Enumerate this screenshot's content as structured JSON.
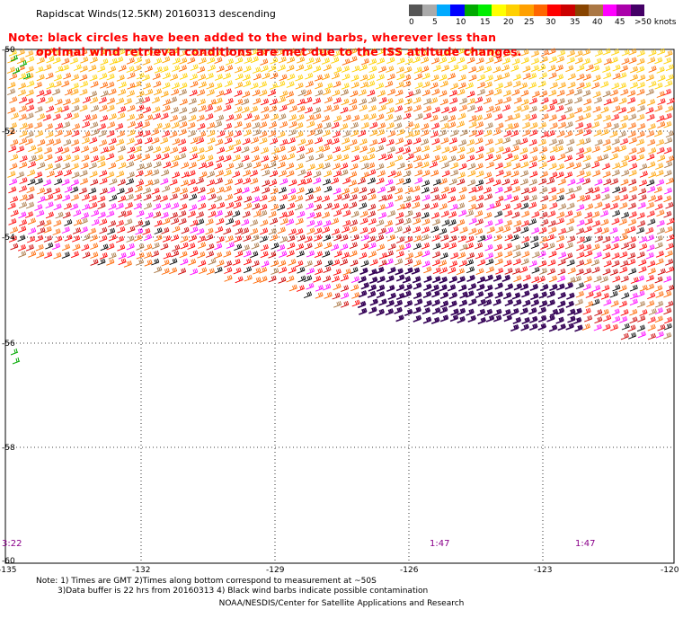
{
  "title": "Rapidscat Winds(12.5KM) 20160313 descending",
  "note_line1": "Note: black circles have been added to the wind barbs, wherever less than",
  "note_line2": "optimal wind retrieval conditions are met due to the ISS attitude changes.",
  "legend": {
    "labels": [
      "0",
      "5",
      "10",
      "15",
      "20",
      "25",
      "30",
      "35",
      "40",
      "45",
      ">50 knots"
    ],
    "colors": [
      "#555555",
      "#aaaaaa",
      "#00aaff",
      "#0000ff",
      "#00aa00",
      "#00ee00",
      "#ffff00",
      "#ffd000",
      "#ffa000",
      "#ff6600",
      "#ff0000",
      "#cc0000",
      "#884400",
      "#aa7744",
      "#ff00ff",
      "#aa00aa",
      "#440066"
    ]
  },
  "latitudes": [
    "-50",
    "-52",
    "-54",
    "-56",
    "-58",
    "-60"
  ],
  "longitudes": [
    "-135",
    "-132",
    "-129",
    "-126",
    "-123",
    "-120"
  ],
  "time_labels": [
    "3:22",
    "1:47",
    "1:47"
  ],
  "footnote_line1": "Note: 1) Times are GMT 2)Times along bottom correspond to measurement at ~50S",
  "footnote_line2": "3)Data buffer is 22 hrs from 20160313 4) Black wind barbs indicate possible contamination",
  "credit": "NOAA/NESDIS/Center for Satellite Applications and Research"
}
